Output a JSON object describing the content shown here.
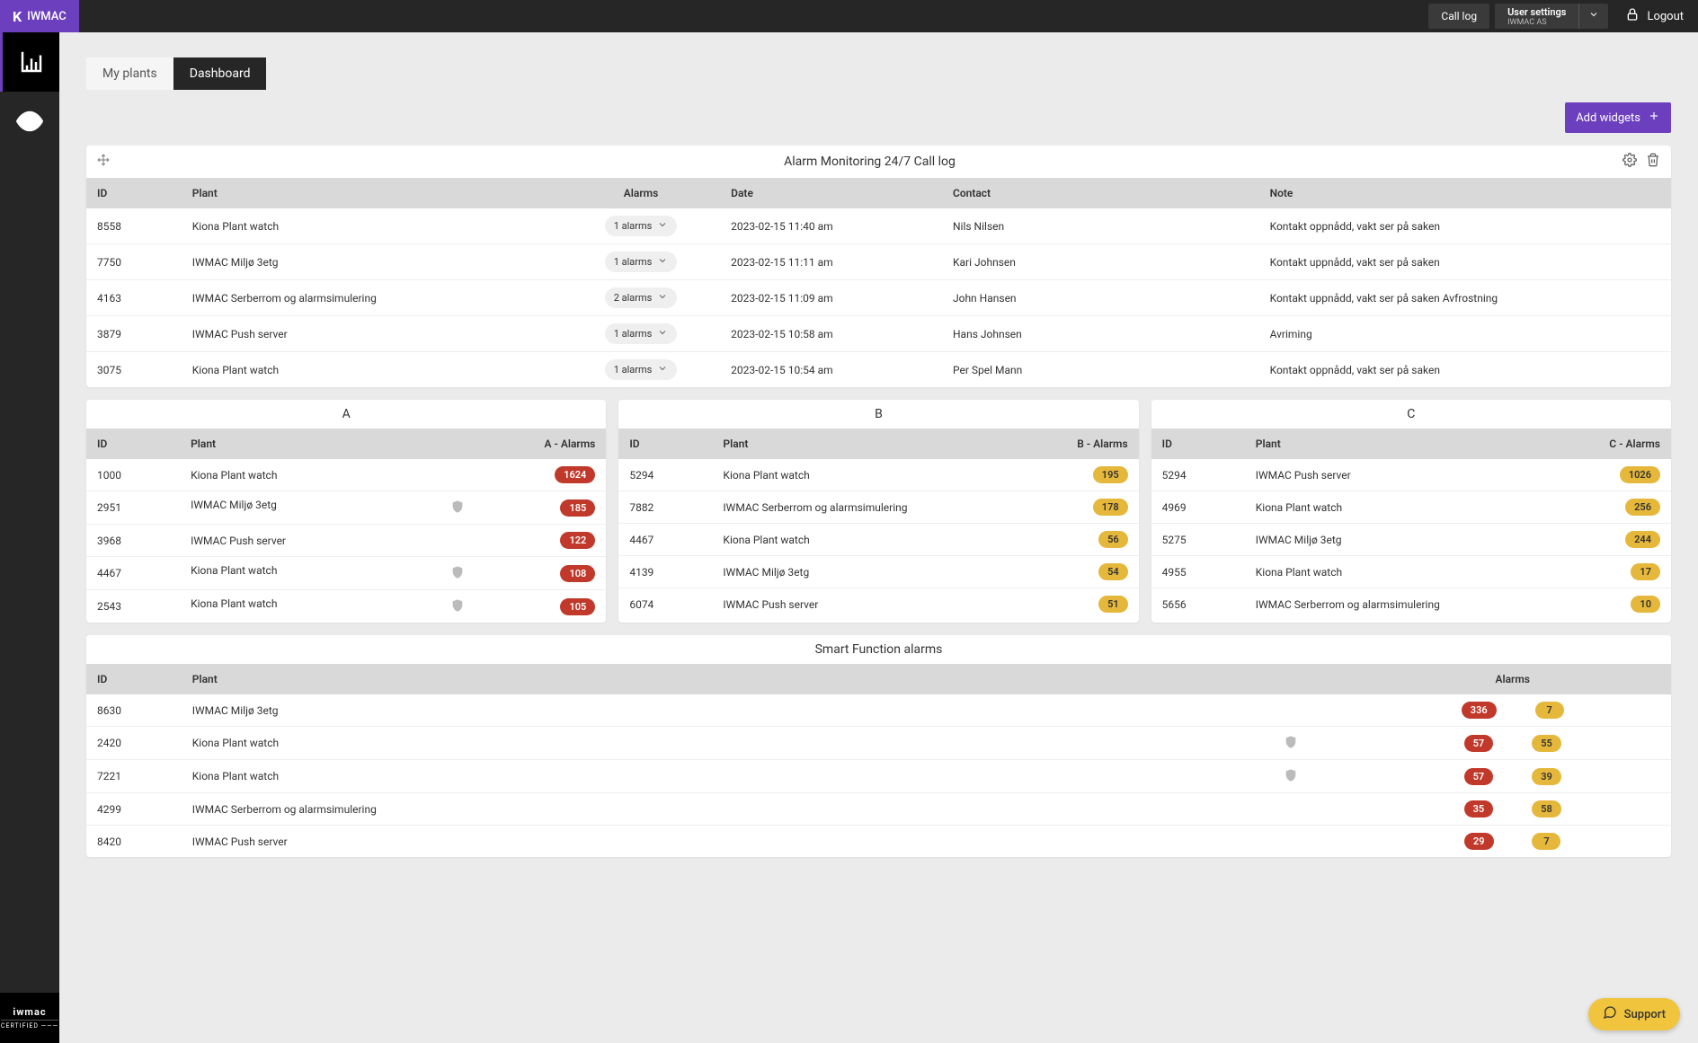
{
  "header": {
    "brand": "IWMAC",
    "call_log": "Call log",
    "user_settings_label": "User settings",
    "user_org": "IWMAC AS",
    "logout": "Logout"
  },
  "tabs": {
    "my_plants": "My plants",
    "dashboard": "Dashboard"
  },
  "add_widgets": "Add widgets",
  "call_log_widget": {
    "title": "Alarm Monitoring 24/7 Call log",
    "columns": {
      "id": "ID",
      "plant": "Plant",
      "alarms": "Alarms",
      "date": "Date",
      "contact": "Contact",
      "note": "Note"
    },
    "rows": [
      {
        "id": "8558",
        "plant": "Kiona Plant watch",
        "alarms": "1 alarms",
        "date": "2023-02-15 11:40 am",
        "contact": "Nils Nilsen",
        "note": "Kontakt oppnådd, vakt ser på saken"
      },
      {
        "id": "7750",
        "plant": "IWMAC Miljø 3etg",
        "alarms": "1 alarms",
        "date": "2023-02-15 11:11 am",
        "contact": "Kari Johnsen",
        "note": "Kontakt uppnådd, vakt ser på saken"
      },
      {
        "id": "4163",
        "plant": "IWMAC Serberrom og alarmsimulering",
        "alarms": "2 alarms",
        "date": "2023-02-15 11:09 am",
        "contact": "John Hansen",
        "note": "Kontakt uppnådd, vakt ser på saken Avfrostning"
      },
      {
        "id": "3879",
        "plant": "IWMAC Push server",
        "alarms": "1 alarms",
        "date": "2023-02-15 10:58 am",
        "contact": "Hans Johnsen",
        "note": "Avriming"
      },
      {
        "id": "3075",
        "plant": "Kiona Plant watch",
        "alarms": "1 alarms",
        "date": "2023-02-15 10:54 am",
        "contact": "Per Spel Mann",
        "note": "Kontakt oppnådd, vakt ser på saken"
      }
    ]
  },
  "widget_a": {
    "title": "A",
    "columns": {
      "id": "ID",
      "plant": "Plant",
      "alarms": "A - Alarms"
    },
    "rows": [
      {
        "id": "1000",
        "plant": "Kiona Plant watch",
        "shield": false,
        "count": "1624"
      },
      {
        "id": "2951",
        "plant": "IWMAC Miljø 3etg",
        "shield": true,
        "count": "185"
      },
      {
        "id": "3968",
        "plant": "IWMAC Push server",
        "shield": false,
        "count": "122"
      },
      {
        "id": "4467",
        "plant": "Kiona Plant watch",
        "shield": true,
        "count": "108"
      },
      {
        "id": "2543",
        "plant": "Kiona Plant watch",
        "shield": true,
        "count": "105"
      }
    ]
  },
  "widget_b": {
    "title": "B",
    "columns": {
      "id": "ID",
      "plant": "Plant",
      "alarms": "B - Alarms"
    },
    "rows": [
      {
        "id": "5294",
        "plant": "Kiona Plant watch",
        "count": "195"
      },
      {
        "id": "7882",
        "plant": "IWMAC Serberrom og alarmsimulering",
        "count": "178"
      },
      {
        "id": "4467",
        "plant": "Kiona Plant watch",
        "count": "56"
      },
      {
        "id": "4139",
        "plant": "IWMAC Miljø 3etg",
        "count": "54"
      },
      {
        "id": "6074",
        "plant": "IWMAC Push server",
        "count": "51"
      }
    ]
  },
  "widget_c": {
    "title": "C",
    "columns": {
      "id": "ID",
      "plant": "Plant",
      "alarms": "C - Alarms"
    },
    "rows": [
      {
        "id": "5294",
        "plant": "IWMAC Push server",
        "count": "1026"
      },
      {
        "id": "4969",
        "plant": "Kiona Plant watch",
        "count": "256"
      },
      {
        "id": "5275",
        "plant": "IWMAC Miljø 3etg",
        "count": "244"
      },
      {
        "id": "4955",
        "plant": "Kiona Plant watch",
        "count": "17"
      },
      {
        "id": "5656",
        "plant": "IWMAC Serberrom og alarmsimulering",
        "count": "10"
      }
    ]
  },
  "smart_widget": {
    "title": "Smart Function alarms",
    "columns": {
      "id": "ID",
      "plant": "Plant",
      "alarms": "Alarms"
    },
    "rows": [
      {
        "id": "8630",
        "plant": "IWMAC Miljø 3etg",
        "shield": false,
        "red": "336",
        "amber": "7"
      },
      {
        "id": "2420",
        "plant": "Kiona Plant watch",
        "shield": true,
        "red": "57",
        "amber": "55"
      },
      {
        "id": "7221",
        "plant": "Kiona Plant watch",
        "shield": true,
        "red": "57",
        "amber": "39"
      },
      {
        "id": "4299",
        "plant": "IWMAC Serberrom og alarmsimulering",
        "shield": false,
        "red": "35",
        "amber": "58"
      },
      {
        "id": "8420",
        "plant": "IWMAC Push server",
        "shield": false,
        "red": "29",
        "amber": "7"
      }
    ]
  },
  "support_label": "Support",
  "sidebar_footer": {
    "brand": "iwmac",
    "cert": "CERTIFIED ———"
  },
  "colors": {
    "primary": "#6c3fbf",
    "red": "#c0392b",
    "amber": "#e5b73b",
    "header_bg": "#262626"
  }
}
